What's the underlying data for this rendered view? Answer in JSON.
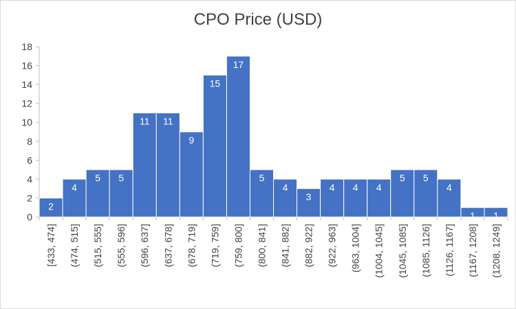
{
  "chart_data": {
    "type": "bar",
    "title": "CPO Price (USD)",
    "xlabel": "",
    "ylabel": "",
    "ylim": [
      0,
      18
    ],
    "yticks": [
      0,
      2,
      4,
      6,
      8,
      10,
      12,
      14,
      16,
      18
    ],
    "categories": [
      "[433, 474]",
      "(474, 515]",
      "(515, 555]",
      "(555, 596]",
      "(596, 637]",
      "(637, 678]",
      "(678, 719]",
      "(719, 759]",
      "(759, 800]",
      "(800, 841]",
      "(841, 882]",
      "(882, 922]",
      "(922, 963]",
      "(963, 1004]",
      "(1004, 1045]",
      "(1045, 1085]",
      "(1085, 1126]",
      "(1126, 1167]",
      "(1167, 1208]",
      "(1208, 1249]"
    ],
    "values": [
      2,
      4,
      5,
      5,
      11,
      11,
      9,
      15,
      17,
      5,
      4,
      3,
      4,
      4,
      4,
      5,
      5,
      4,
      1,
      1
    ],
    "grid": false,
    "legend": "none",
    "bar_color": "#4472c4"
  }
}
